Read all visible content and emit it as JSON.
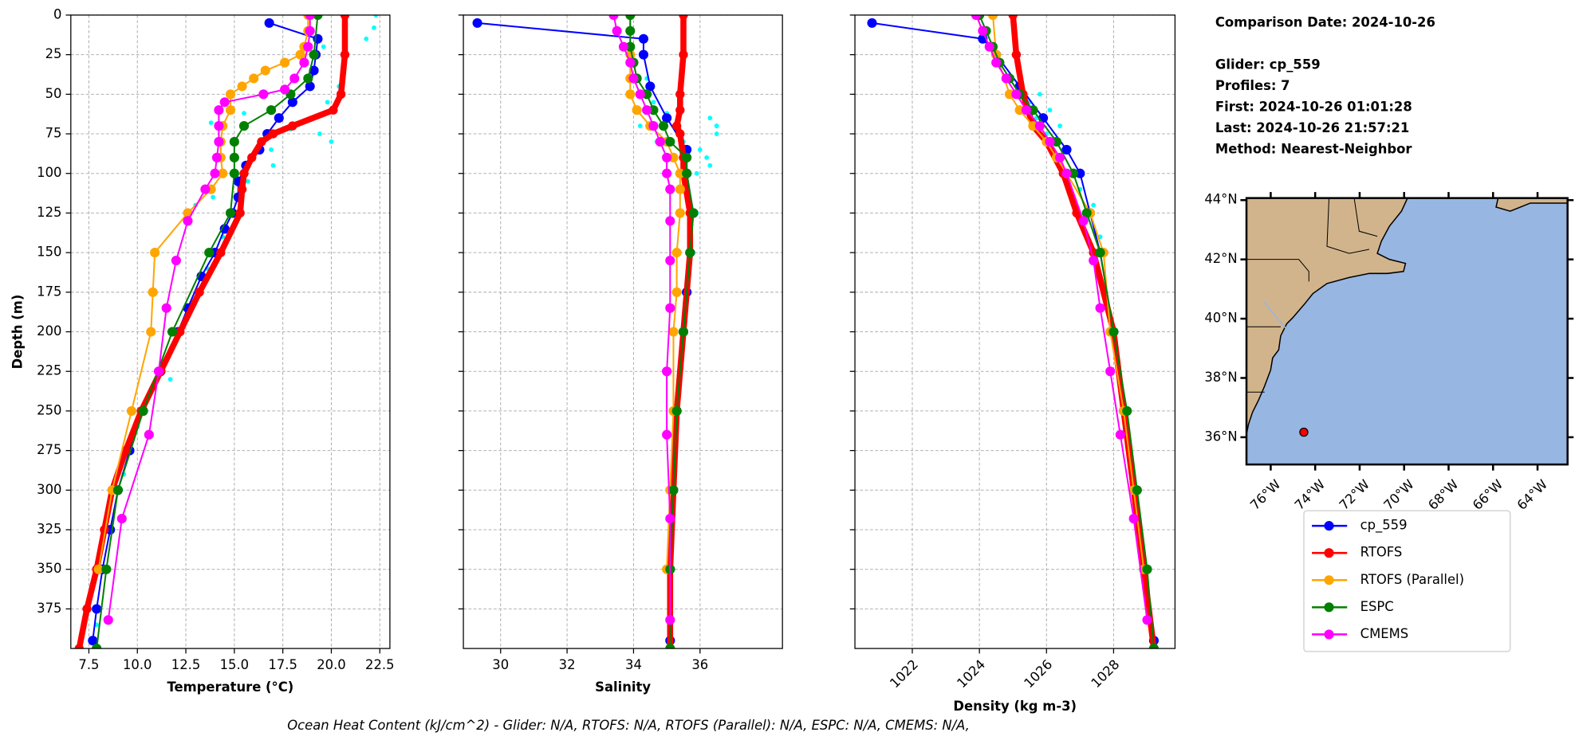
{
  "chart_data": [
    {
      "type": "line",
      "xlabel": "Temperature (°C)",
      "ylabel": "Depth (m)",
      "xlim": [
        6.57,
        23.02
      ],
      "ylim": [
        0,
        400
      ],
      "y_inverted": true,
      "grid": true,
      "xticks": [
        {
          "value": 7.5,
          "label": "7.5"
        },
        {
          "value": 10,
          "label": "10.0"
        },
        {
          "value": 12.5,
          "label": "12.5"
        },
        {
          "value": 15,
          "label": "15.0"
        },
        {
          "value": 17.5,
          "label": "17.5"
        },
        {
          "value": 20,
          "label": "20.0"
        },
        {
          "value": 22.5,
          "label": "22.5"
        }
      ],
      "yticks": [
        0,
        25,
        50,
        75,
        100,
        125,
        150,
        175,
        200,
        225,
        250,
        275,
        300,
        325,
        350,
        375
      ],
      "scatter": {
        "color": "#00ffff",
        "values": [
          22.3,
          22.2,
          21.8,
          19.6,
          20.4,
          19.8,
          15.5,
          13.8,
          17.9,
          19.4,
          20.0,
          16.9,
          17.0,
          15.7,
          13.9,
          13.0,
          12.5,
          14.4,
          13.6,
          12.3,
          11.7,
          10.0,
          9.3,
          8.4,
          8.1,
          7.9,
          7.6
        ],
        "depths": [
          0,
          8,
          15,
          20,
          45,
          55,
          62,
          68,
          72,
          75,
          80,
          85,
          95,
          105,
          115,
          120,
          130,
          140,
          160,
          200,
          230,
          260,
          290,
          320,
          350,
          385,
          395
        ]
      },
      "series": [
        {
          "name": "cp_559",
          "color": "#0000ff",
          "values": [
            16.8,
            19.3,
            19.2,
            19.1,
            18.9,
            18.0,
            17.3,
            16.7,
            16.3,
            15.6,
            15.2,
            15.2,
            14.9,
            14.5,
            14.0,
            13.3,
            12.6,
            12.1,
            11.2,
            10.3,
            9.6,
            9.0,
            8.6,
            8.2,
            7.9,
            7.7
          ],
          "depths": [
            5,
            15,
            25,
            35,
            45,
            55,
            65,
            75,
            85,
            95,
            105,
            115,
            125,
            135,
            150,
            165,
            185,
            200,
            225,
            250,
            275,
            300,
            325,
            350,
            375,
            395
          ]
        },
        {
          "name": "RTOFS",
          "color": "#ff0000",
          "values": [
            20.7,
            20.7,
            20.5,
            20.1,
            18.0,
            17.0,
            16.4,
            15.9,
            15.5,
            15.4,
            15.3,
            14.3,
            13.2,
            12.2,
            11.2,
            10.2,
            9.4,
            8.7,
            8.3,
            7.9,
            7.4,
            7.0
          ],
          "depths": [
            0,
            25,
            50,
            60,
            70,
            75,
            80,
            90,
            100,
            110,
            125,
            150,
            175,
            200,
            225,
            250,
            275,
            300,
            325,
            350,
            375,
            400
          ]
        },
        {
          "name": "RTOFS (Parallel)",
          "color": "#ffa500",
          "values": [
            18.8,
            18.8,
            18.6,
            18.4,
            17.6,
            16.6,
            16.0,
            15.4,
            14.8,
            14.8,
            14.4,
            14.3,
            14.3,
            14.4,
            13.8,
            12.6,
            10.9,
            10.8,
            10.7,
            9.7,
            8.7,
            8.0
          ],
          "depths": [
            0,
            10,
            20,
            25,
            30,
            35,
            40,
            45,
            50,
            60,
            70,
            80,
            90,
            100,
            110,
            125,
            150,
            175,
            200,
            250,
            300,
            350
          ]
        },
        {
          "name": "ESPC",
          "color": "#008000",
          "values": [
            19.3,
            19.1,
            18.8,
            17.9,
            16.9,
            15.5,
            15.0,
            15.0,
            15.0,
            14.8,
            13.7,
            11.8,
            10.3,
            9.0,
            8.4,
            7.9
          ],
          "depths": [
            0,
            25,
            40,
            50,
            60,
            70,
            80,
            90,
            100,
            125,
            150,
            200,
            250,
            300,
            350,
            400
          ]
        },
        {
          "name": "CMEMS",
          "color": "#ff00ff",
          "values": [
            18.9,
            18.9,
            18.8,
            18.6,
            18.1,
            17.6,
            16.5,
            14.5,
            14.2,
            14.2,
            14.2,
            14.1,
            14.0,
            13.5,
            12.6,
            12.0,
            11.5,
            11.1,
            10.6,
            9.2,
            8.5
          ],
          "depths": [
            0,
            10,
            20,
            30,
            40,
            47,
            50,
            55,
            60,
            70,
            80,
            90,
            100,
            110,
            130,
            155,
            185,
            225,
            265,
            318,
            382
          ]
        }
      ]
    },
    {
      "type": "line",
      "xlabel": "Salinity",
      "xlim": [
        28.88,
        38.48
      ],
      "ylim": [
        0,
        400
      ],
      "y_inverted": true,
      "grid": true,
      "xticks": [
        30,
        32,
        34,
        36
      ],
      "yticks": [
        0,
        25,
        50,
        75,
        100,
        125,
        150,
        175,
        200,
        225,
        250,
        275,
        300,
        325,
        350,
        375
      ],
      "scatter": {
        "color": "#00ffff",
        "values": [
          34.4,
          34.6,
          35.0,
          36.3,
          36.5,
          36.5,
          35.5,
          36.0,
          36.2,
          36.3,
          35.9,
          35.6,
          35.9,
          35.7,
          35.8,
          34.7,
          34.2
        ],
        "depths": [
          40,
          55,
          62,
          65,
          70,
          75,
          80,
          85,
          90,
          95,
          100,
          110,
          125,
          140,
          150,
          80,
          70
        ]
      },
      "series": [
        {
          "color": "#0000ff",
          "values": [
            29.3,
            34.3,
            34.3,
            34.5,
            35.0,
            35.6,
            35.6,
            35.8,
            35.7,
            35.6,
            35.5,
            35.3,
            35.2,
            35.1,
            35.1
          ],
          "depths": [
            5,
            15,
            25,
            45,
            65,
            85,
            100,
            125,
            150,
            175,
            200,
            250,
            300,
            350,
            395
          ]
        },
        {
          "color": "#ff0000",
          "values": [
            35.5,
            35.5,
            35.4,
            35.4,
            35.3,
            35.4,
            35.5,
            35.5,
            35.7,
            35.7,
            35.5,
            35.3,
            35.2,
            35.1,
            35.1
          ],
          "depths": [
            0,
            25,
            50,
            60,
            70,
            75,
            90,
            100,
            125,
            150,
            200,
            250,
            300,
            350,
            400
          ]
        },
        {
          "color": "#ffa500",
          "values": [
            33.9,
            33.9,
            33.9,
            33.9,
            34.1,
            34.5,
            35.0,
            35.2,
            35.4,
            35.4,
            35.4,
            35.3,
            35.3,
            35.2,
            35.2,
            35.1,
            35.0
          ],
          "depths": [
            0,
            25,
            40,
            50,
            60,
            70,
            80,
            90,
            100,
            110,
            125,
            150,
            175,
            200,
            250,
            300,
            350
          ]
        },
        {
          "color": "#008000",
          "values": [
            33.9,
            33.9,
            33.9,
            34.0,
            34.1,
            34.4,
            34.6,
            34.9,
            35.1,
            35.6,
            35.6,
            35.8,
            35.7,
            35.5,
            35.3,
            35.2,
            35.1,
            35.1
          ],
          "depths": [
            0,
            10,
            20,
            30,
            40,
            50,
            60,
            70,
            80,
            90,
            100,
            125,
            150,
            200,
            250,
            300,
            350,
            400
          ]
        },
        {
          "color": "#ff00ff",
          "values": [
            33.4,
            33.5,
            33.7,
            33.9,
            34.0,
            34.2,
            34.4,
            34.6,
            34.8,
            35.0,
            35.0,
            35.1,
            35.1,
            35.1,
            35.1,
            35.0,
            35.0,
            35.1,
            35.1
          ],
          "depths": [
            0,
            10,
            20,
            30,
            40,
            50,
            60,
            70,
            80,
            90,
            100,
            110,
            130,
            155,
            185,
            225,
            265,
            318,
            382
          ]
        }
      ]
    },
    {
      "type": "line",
      "xlabel": "Density (kg m-3)",
      "xlim": [
        1020.29,
        1029.83
      ],
      "ylim": [
        0,
        400
      ],
      "y_inverted": true,
      "grid": true,
      "xticks": [
        1022,
        1024,
        1026,
        1028
      ],
      "yticks": [
        0,
        25,
        50,
        75,
        100,
        125,
        150,
        175,
        200,
        225,
        250,
        275,
        300,
        325,
        350,
        375
      ],
      "scatter": {
        "color": "#00ffff",
        "values": [
          1025.8,
          1025.5,
          1026.1,
          1025.7,
          1026.4,
          1026.0,
          1026.5,
          1026.9,
          1027.0,
          1027.4,
          1027.6
        ],
        "depths": [
          50,
          55,
          60,
          65,
          70,
          75,
          85,
          100,
          110,
          120,
          140
        ]
      },
      "series": [
        {
          "color": "#0000ff",
          "values": [
            1020.8,
            1024.1,
            1024.5,
            1025.2,
            1025.9,
            1026.6,
            1027.0,
            1027.3,
            1027.6,
            1028.0,
            1028.3,
            1028.6,
            1028.9,
            1029.2
          ],
          "depths": [
            5,
            15,
            25,
            45,
            65,
            85,
            100,
            125,
            150,
            200,
            250,
            300,
            350,
            395
          ]
        },
        {
          "color": "#ff0000",
          "values": [
            1025.0,
            1025.1,
            1025.3,
            1025.6,
            1026.0,
            1026.5,
            1026.9,
            1027.4,
            1028.0,
            1028.3,
            1028.6,
            1028.9,
            1029.2
          ],
          "depths": [
            0,
            25,
            50,
            70,
            80,
            100,
            125,
            150,
            200,
            250,
            300,
            350,
            400
          ]
        },
        {
          "color": "#ffa500",
          "values": [
            1024.4,
            1024.5,
            1024.9,
            1025.2,
            1025.6,
            1026.0,
            1026.3,
            1026.6,
            1027.3,
            1027.7,
            1027.9,
            1028.3,
            1028.6,
            1028.9
          ],
          "depths": [
            0,
            25,
            50,
            60,
            70,
            80,
            90,
            100,
            125,
            150,
            200,
            250,
            300,
            350
          ]
        },
        {
          "color": "#008000",
          "values": [
            1024.0,
            1024.2,
            1024.4,
            1024.6,
            1024.9,
            1025.2,
            1025.6,
            1026.3,
            1026.8,
            1027.2,
            1027.6,
            1028.0,
            1028.4,
            1028.7,
            1029.0,
            1029.2
          ],
          "depths": [
            0,
            10,
            20,
            30,
            40,
            50,
            60,
            80,
            100,
            125,
            150,
            200,
            250,
            300,
            350,
            400
          ]
        },
        {
          "color": "#ff00ff",
          "values": [
            1023.9,
            1024.1,
            1024.3,
            1024.5,
            1024.8,
            1025.1,
            1025.4,
            1025.8,
            1026.1,
            1026.4,
            1026.6,
            1027.1,
            1027.4,
            1027.6,
            1027.9,
            1028.2,
            1028.6,
            1029.0
          ],
          "depths": [
            0,
            10,
            20,
            30,
            40,
            50,
            60,
            70,
            80,
            90,
            100,
            130,
            155,
            185,
            225,
            265,
            318,
            382
          ]
        }
      ]
    },
    {
      "type": "map",
      "xlim": [
        -77.09,
        -62.65
      ],
      "ylim": [
        35.08,
        44.07
      ],
      "xticks": [
        {
          "value": -76,
          "label": "76°W"
        },
        {
          "value": -74,
          "label": "74°W"
        },
        {
          "value": -72,
          "label": "72°W"
        },
        {
          "value": -70,
          "label": "70°W"
        },
        {
          "value": -68,
          "label": "68°W"
        },
        {
          "value": -66,
          "label": "66°W"
        },
        {
          "value": -64,
          "label": "64°W"
        }
      ],
      "yticks": [
        {
          "value": 36,
          "label": "36°N"
        },
        {
          "value": 38,
          "label": "38°N"
        },
        {
          "value": 40,
          "label": "40°N"
        },
        {
          "value": 42,
          "label": "42°N"
        },
        {
          "value": 44,
          "label": "44°N"
        }
      ],
      "series": [
        {
          "color": "#ff0000",
          "x": [
            -74.51
          ],
          "values": [
            36.17
          ]
        }
      ]
    }
  ],
  "info": [
    "Comparison Date: 2024-10-26",
    "Glider: cp_559",
    "Profiles: 7",
    "First: 2024-10-26 01:01:28",
    "Last: 2024-10-26 21:57:21",
    "Method: Nearest-Neighbor"
  ],
  "footer": "Ocean Heat Content (kJ/cm^2) - Glider: N/A,  RTOFS: N/A,  RTOFS (Parallel): N/A,  ESPC: N/A,  CMEMS: N/A,"
}
